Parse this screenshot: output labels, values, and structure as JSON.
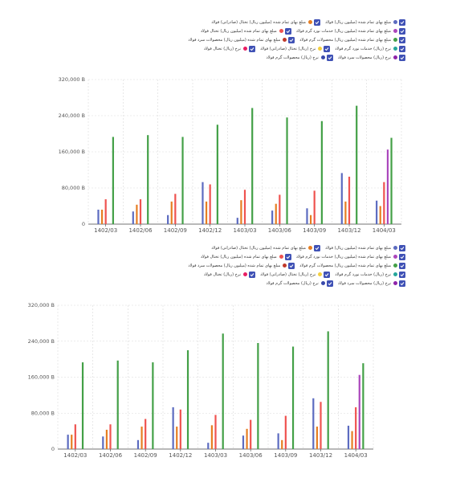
{
  "colors": {
    "checkbox": "#3f51b5",
    "grid": "#d9d9d9",
    "axis": "#444444"
  },
  "legend_items": [
    {
      "label": "مبلغ بهای تمام شده (میلیون ریال) فولاد",
      "color": "#5c6bc0"
    },
    {
      "label": "مبلغ بهای تمام شده (میلیون ریال) تختال (صادراتی) فولاد",
      "color": "#e67e22"
    },
    {
      "label": "مبلغ بهای تمام شده (میلیون ریال) تختال فولاد",
      "color": "#ef5350"
    },
    {
      "label": "مبلغ بهای تمام شده (میلیون ریال) خدمات نورد گرم فولاد",
      "color": "#ab47bc"
    },
    {
      "label": "مبلغ بهای تمام شده (میلیون ریال) محصولات سرد فولاد",
      "color": "#c0392b"
    },
    {
      "label": "مبلغ بهای تمام شده (میلیون ریال) محصولات گرم فولاد",
      "color": "#43a047"
    },
    {
      "label": "نرخ (ریال) تختال (صادراتی) فولاد",
      "color": "#f4d03f"
    },
    {
      "label": "نرخ (ریال) تختال فولاد",
      "color": "#e91e63"
    },
    {
      "label": "نرخ (ریال) خدمات نورد گرم فولاد",
      "color": "#26a69a"
    },
    {
      "label": "نرخ (ریال) محصولات سرد فولاد",
      "color": "#8e24aa"
    },
    {
      "label": "نرخ (ریال) محصولات گرم فولاد",
      "color": "#3949ab"
    }
  ],
  "chart_data": [
    {
      "type": "bar",
      "categories": [
        "1402/03",
        "1402/06",
        "1402/09",
        "1402/12",
        "1403/03",
        "1403/06",
        "1403/09",
        "1403/12",
        "1404/03"
      ],
      "ylim": [
        0,
        320000
      ],
      "yticks": [
        "0",
        "80,000 B",
        "160,000 B",
        "240,000 B",
        "320,000 B"
      ],
      "grid": true,
      "legend_position": "top-right",
      "series": [
        {
          "name": "مبلغ بهای تمام شده (میلیون ریال) فولاد",
          "color": "#5c6bc0",
          "values": [
            32000,
            28000,
            20000,
            93000,
            14000,
            30000,
            35000,
            113000,
            52000
          ]
        },
        {
          "name": "مبلغ بهای تمام شده (میلیون ریال) تختال (صادراتی) فولاد",
          "color": "#e67e22",
          "values": [
            32000,
            43000,
            50000,
            50000,
            53000,
            45000,
            20000,
            50000,
            40000
          ]
        },
        {
          "name": "مبلغ بهای تمام شده (میلیون ریال) تختال فولاد",
          "color": "#ef5350",
          "values": [
            55000,
            55000,
            67000,
            88000,
            76000,
            65000,
            74000,
            105000,
            93000
          ]
        },
        {
          "name": "مبلغ بهای تمام شده (میلیون ریال) خدمات نورد گرم فولاد",
          "color": "#ab47bc",
          "values": [
            0,
            0,
            0,
            0,
            0,
            0,
            0,
            0,
            165000
          ]
        },
        {
          "name": "مبلغ بهای تمام شده (میلیون ریال) محصولات گرم فولاد",
          "color": "#43a047",
          "values": [
            193000,
            197000,
            193000,
            220000,
            257000,
            236000,
            228000,
            262000,
            191000
          ]
        }
      ]
    },
    {
      "type": "bar",
      "categories": [
        "1402/03",
        "1402/06",
        "1402/09",
        "1402/12",
        "1403/03",
        "1403/06",
        "1403/09",
        "1403/12",
        "1404/03"
      ],
      "ylim": [
        0,
        320000
      ],
      "yticks": [
        "0",
        "80,000 B",
        "160,000 B",
        "240,000 B",
        "320,000 B"
      ],
      "grid": true,
      "legend_position": "top-right",
      "series": [
        {
          "name": "مبلغ بهای تمام شده (میلیون ریال) فولاد",
          "color": "#5c6bc0",
          "values": [
            32000,
            28000,
            20000,
            93000,
            14000,
            30000,
            35000,
            113000,
            52000
          ]
        },
        {
          "name": "مبلغ بهای تمام شده (میلیون ریال) تختال (صادراتی) فولاد",
          "color": "#e67e22",
          "values": [
            32000,
            43000,
            50000,
            50000,
            53000,
            45000,
            20000,
            50000,
            40000
          ]
        },
        {
          "name": "مبلغ بهای تمام شده (میلیون ریال) تختال فولاد",
          "color": "#ef5350",
          "values": [
            55000,
            55000,
            67000,
            88000,
            76000,
            65000,
            74000,
            105000,
            93000
          ]
        },
        {
          "name": "مبلغ بهای تمام شده (میلیون ریال) خدمات نورد گرم فولاد",
          "color": "#ab47bc",
          "values": [
            0,
            0,
            0,
            0,
            0,
            0,
            0,
            0,
            165000
          ]
        },
        {
          "name": "مبلغ بهای تمام شده (میلیون ریال) محصولات گرم فولاد",
          "color": "#43a047",
          "values": [
            193000,
            197000,
            193000,
            220000,
            257000,
            236000,
            228000,
            262000,
            191000
          ]
        }
      ]
    }
  ]
}
